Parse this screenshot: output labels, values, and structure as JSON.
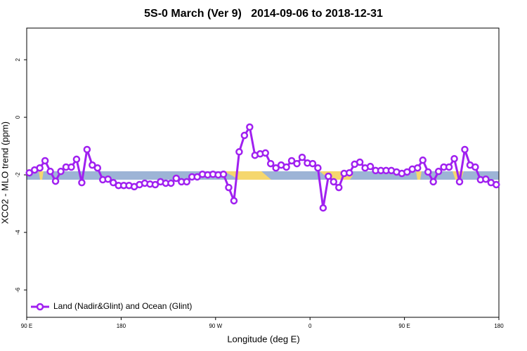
{
  "chart_data": {
    "type": "line",
    "title": "5S-0 March (Ver 9)   2014-09-06 to 2018-12-31",
    "x_label": "Longitude (deg E)",
    "y_label": "XCO2 - MLO trend (ppm)",
    "xlim": [
      90,
      540
    ],
    "ylim": [
      -6.95,
      3.1
    ],
    "xticks": [
      {
        "value": 90,
        "label": "90 E"
      },
      180,
      {
        "value": 270,
        "label": "90 W"
      },
      {
        "value": 360,
        "label": "0"
      },
      {
        "value": 450,
        "label": "90 E"
      },
      {
        "value": 540,
        "label": "180"
      }
    ],
    "yticks": [
      -6,
      -4,
      -2,
      0,
      2
    ],
    "x": [
      92.5,
      97.5,
      102.5,
      107.5,
      112.5,
      117.5,
      122.5,
      127.5,
      132.5,
      137.5,
      142.5,
      147.5,
      152.5,
      157.5,
      162.5,
      167.5,
      172.5,
      177.5,
      182.5,
      187.5,
      192.5,
      197.5,
      202.5,
      207.5,
      212.5,
      217.5,
      222.5,
      227.5,
      232.5,
      237.5,
      242.5,
      247.5,
      252.5,
      257.5,
      262.5,
      267.5,
      272.5,
      277.5,
      282.5,
      287.5,
      292.5,
      297.5,
      302.5,
      307.5,
      312.5,
      317.5,
      322.5,
      327.5,
      332.5,
      337.5,
      342.5,
      347.5,
      352.5,
      357.5,
      362.5,
      367.5,
      372.5,
      377.5,
      382.5,
      387.5,
      392.5,
      397.5,
      402.5,
      407.5,
      412.5,
      417.5,
      422.5,
      427.5,
      432.5,
      437.5,
      442.5,
      447.5,
      452.5,
      457.5,
      462.5,
      467.5,
      472.5,
      477.5,
      482.5,
      487.5,
      492.5,
      497.5,
      502.5,
      507.5,
      512.5,
      517.5,
      522.5,
      527.5,
      532.5,
      537.5
    ],
    "series": [
      {
        "name": "Land (Nadir&Glint) and Ocean (Glint)",
        "color": "#a020f0",
        "values": [
          -1.93,
          -1.83,
          -1.76,
          -1.51,
          -1.88,
          -2.22,
          -1.88,
          -1.73,
          -1.73,
          -1.46,
          -2.27,
          -1.12,
          -1.66,
          -1.76,
          -2.17,
          -2.15,
          -2.27,
          -2.37,
          -2.37,
          -2.37,
          -2.41,
          -2.34,
          -2.29,
          -2.32,
          -2.34,
          -2.24,
          -2.29,
          -2.29,
          -2.12,
          -2.24,
          -2.24,
          -2.07,
          -2.07,
          -1.98,
          -2.0,
          -1.98,
          -2.0,
          -1.98,
          -2.44,
          -2.9,
          -1.2,
          -0.63,
          -0.34,
          -1.32,
          -1.27,
          -1.24,
          -1.61,
          -1.76,
          -1.66,
          -1.73,
          -1.51,
          -1.61,
          -1.39,
          -1.59,
          -1.61,
          -1.76,
          -3.15,
          -2.05,
          -2.24,
          -2.44,
          -1.95,
          -1.93,
          -1.63,
          -1.56,
          -1.76,
          -1.71,
          -1.85,
          -1.85,
          -1.85,
          -1.85,
          -1.9,
          -1.95,
          -1.9,
          -1.8,
          -1.76,
          -1.49,
          -1.9,
          -2.24,
          -1.88,
          -1.73,
          -1.73,
          -1.44,
          -2.24,
          -1.12,
          -1.66,
          -1.73,
          -2.17,
          -2.15,
          -2.27,
          -2.34
        ]
      }
    ],
    "legend": "bottom-left"
  }
}
